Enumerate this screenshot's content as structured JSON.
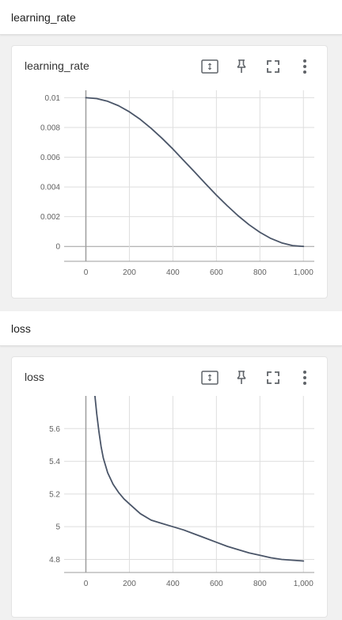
{
  "sections": [
    {
      "header": "learning_rate",
      "card_title": "learning_rate",
      "chart_data": {
        "type": "line",
        "title": "learning_rate",
        "xlabel": "",
        "ylabel": "",
        "xlim": [
          -100,
          1050
        ],
        "ylim": [
          -0.001,
          0.0105
        ],
        "x_ticks": [
          0,
          200,
          400,
          600,
          800,
          1000
        ],
        "x_tick_labels": [
          "0",
          "200",
          "400",
          "600",
          "800",
          "1,000"
        ],
        "y_ticks": [
          0,
          0.002,
          0.004,
          0.006,
          0.008,
          0.01
        ],
        "y_tick_labels": [
          "0",
          "0.002",
          "0.004",
          "0.006",
          "0.008",
          "0.01"
        ],
        "grid": true,
        "series": [
          {
            "x": [
              0,
              50,
              100,
              150,
              200,
              250,
              300,
              350,
              400,
              450,
              500,
              550,
              600,
              650,
              700,
              750,
              800,
              850,
              900,
              950,
              1000
            ],
            "y": [
              0.01,
              0.00994,
              0.00976,
              0.00946,
              0.00905,
              0.00854,
              0.00794,
              0.00727,
              0.00655,
              0.00578,
              0.005,
              0.00422,
              0.00345,
              0.00273,
              0.00206,
              0.00146,
              0.00095,
              0.00054,
              0.00024,
              6e-05,
              0.0
            ],
            "color": "#4a5568"
          }
        ]
      }
    },
    {
      "header": "loss",
      "card_title": "loss",
      "chart_data": {
        "type": "line",
        "title": "loss",
        "xlabel": "",
        "ylabel": "",
        "xlim": [
          -100,
          1050
        ],
        "ylim": [
          4.72,
          5.8
        ],
        "x_ticks": [
          0,
          200,
          400,
          600,
          800,
          1000
        ],
        "x_tick_labels": [
          "0",
          "200",
          "400",
          "600",
          "800",
          "1,000"
        ],
        "y_ticks": [
          4.8,
          5,
          5.2,
          5.4,
          5.6
        ],
        "y_tick_labels": [
          "4.8",
          "5",
          "5.2",
          "5.4",
          "5.6"
        ],
        "grid": true,
        "series": [
          {
            "x": [
              40,
              50,
              60,
              70,
              80,
              100,
              125,
              150,
              175,
              200,
              250,
              300,
              350,
              400,
              450,
              500,
              550,
              600,
              650,
              700,
              750,
              800,
              850,
              900,
              950,
              1000
            ],
            "y": [
              5.82,
              5.69,
              5.58,
              5.49,
              5.42,
              5.33,
              5.26,
              5.21,
              5.17,
              5.14,
              5.08,
              5.04,
              5.02,
              5.0,
              4.98,
              4.955,
              4.93,
              4.905,
              4.88,
              4.86,
              4.84,
              4.825,
              4.81,
              4.8,
              4.795,
              4.79
            ],
            "color": "#4a5568"
          }
        ]
      }
    }
  ],
  "icons": [
    "fit-domain-icon",
    "pin-icon",
    "fullscreen-icon",
    "more-vert-icon"
  ],
  "colors": {
    "line": "#4a5568",
    "grid": "#dedede",
    "axis": "#9e9e9e",
    "icon": "#5f6368"
  }
}
